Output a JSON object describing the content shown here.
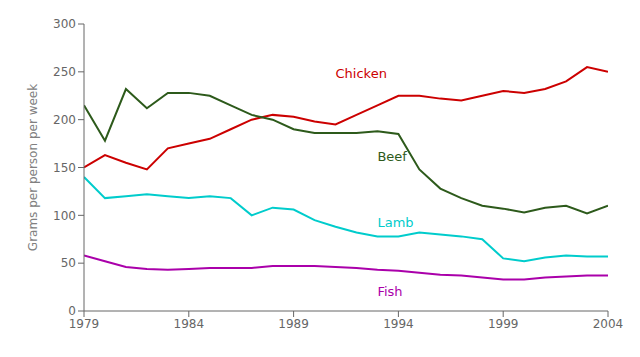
{
  "chart_data": {
    "type": "line",
    "ylabel": "Grams per person per week",
    "x": [
      1979,
      1980,
      1981,
      1982,
      1983,
      1984,
      1985,
      1986,
      1987,
      1988,
      1989,
      1990,
      1991,
      1992,
      1993,
      1994,
      1995,
      1996,
      1997,
      1998,
      1999,
      2000,
      2001,
      2002,
      2003,
      2004
    ],
    "series": [
      {
        "name": "Chicken",
        "color": "#cc0000",
        "values": [
          150,
          163,
          155,
          148,
          170,
          175,
          180,
          190,
          200,
          205,
          203,
          198,
          195,
          205,
          215,
          225,
          225,
          222,
          220,
          225,
          230,
          228,
          232,
          240,
          255,
          250
        ]
      },
      {
        "name": "Beef",
        "color": "#2d5a1b",
        "values": [
          215,
          178,
          232,
          212,
          228,
          228,
          225,
          215,
          205,
          200,
          190,
          186,
          186,
          186,
          188,
          185,
          148,
          128,
          118,
          110,
          107,
          103,
          108,
          110,
          102,
          110
        ]
      },
      {
        "name": "Lamb",
        "color": "#00cccc",
        "values": [
          140,
          118,
          120,
          122,
          120,
          118,
          120,
          118,
          100,
          108,
          106,
          95,
          88,
          82,
          78,
          78,
          82,
          80,
          78,
          75,
          55,
          52,
          56,
          58,
          57,
          57
        ]
      },
      {
        "name": "Fish",
        "color": "#aa00aa",
        "values": [
          58,
          52,
          46,
          44,
          43,
          44,
          45,
          45,
          45,
          47,
          47,
          47,
          46,
          45,
          43,
          42,
          40,
          38,
          37,
          35,
          33,
          33,
          35,
          36,
          37,
          37
        ]
      }
    ],
    "annotations": [
      {
        "text": "Chicken",
        "x": 1991,
        "y": 248
      },
      {
        "text": "Beef",
        "x": 1993,
        "y": 162
      },
      {
        "text": "Lamb",
        "x": 1993,
        "y": 93
      },
      {
        "text": "Fish",
        "x": 1993,
        "y": 20
      }
    ],
    "xlim": [
      1979,
      2004
    ],
    "ylim": [
      0,
      300
    ],
    "xticks": [
      1979,
      1984,
      1989,
      1994,
      1999,
      2004
    ],
    "yticks": [
      0,
      50,
      100,
      150,
      200,
      250,
      300
    ],
    "grid": false
  }
}
